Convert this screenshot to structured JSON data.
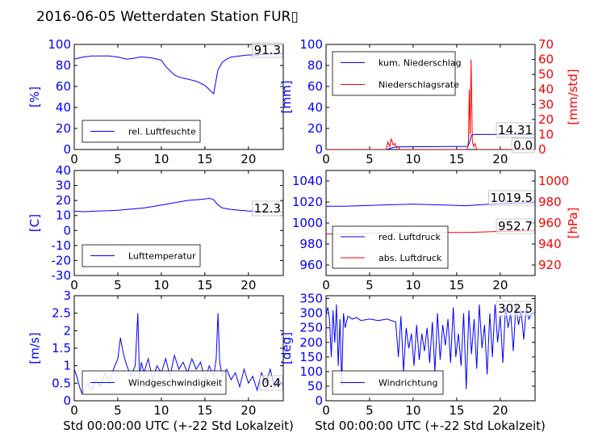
{
  "figure_title": "2016-06-05 Wetterdaten Station FUR▯",
  "xlabel": "Std 00:00:00 UTC (+-22 Std Lokalzeit)",
  "colors": {
    "blue": "#0000ff",
    "red": "#ff0000",
    "lightblue": "#8080ff",
    "black": "#000000"
  },
  "chart_data": [
    {
      "id": "humidity",
      "type": "line",
      "xlim": [
        0,
        24
      ],
      "ylim": [
        0,
        100
      ],
      "xticks": [
        0,
        5,
        10,
        15,
        20
      ],
      "yticks": [
        0,
        20,
        40,
        60,
        80,
        100
      ],
      "ylabel": "[%]",
      "value_label": "91.3",
      "legend": {
        "placement": "lower-left",
        "entries": [
          {
            "name": "rel. Luftfeuchte",
            "color": "#0000ff"
          }
        ]
      },
      "series": [
        {
          "name": "rel. Luftfeuchte",
          "color": "#0000ff",
          "x": [
            0,
            0.5,
            1,
            2,
            3,
            4,
            5,
            6,
            7,
            7.5,
            8,
            9,
            10,
            10.5,
            11,
            11.5,
            12,
            12.5,
            13,
            13.5,
            14,
            14.5,
            15,
            15.5,
            16,
            16.2,
            16.5,
            17,
            17.5,
            18,
            19,
            20,
            21,
            22,
            23,
            24
          ],
          "y": [
            86,
            87,
            88,
            89,
            89,
            89,
            88,
            86,
            87,
            88,
            88,
            87,
            85,
            79,
            75,
            71,
            69,
            68,
            67,
            66,
            65,
            63,
            61,
            57,
            53,
            62,
            76,
            83,
            86,
            88,
            89,
            90,
            90,
            91,
            91,
            91.3
          ]
        }
      ]
    },
    {
      "id": "precipitation",
      "type": "line",
      "xlim": [
        0,
        24
      ],
      "ylim": [
        0,
        100
      ],
      "y2lim": [
        0,
        70
      ],
      "xticks": [
        0,
        5,
        10,
        15,
        20
      ],
      "yticks": [
        0,
        20,
        40,
        60,
        80,
        100
      ],
      "y2ticks": [
        0,
        10,
        20,
        30,
        40,
        50,
        60,
        70
      ],
      "ylabel": "[mm]",
      "y2label": "[mm/std]",
      "value_labels": [
        "14.31",
        "0.0"
      ],
      "legend": {
        "placement": "upper-left",
        "entries": [
          {
            "name": "kum. Niederschlag",
            "color": "#0000ff"
          },
          {
            "name": "Niederschlagsrate",
            "color": "#ff0000"
          }
        ]
      },
      "series": [
        {
          "name": "kum. Niederschlag",
          "color": "#0000ff",
          "axis": "left",
          "x": [
            0,
            7,
            7.5,
            8,
            16.3,
            16.5,
            16.7,
            17,
            24
          ],
          "y": [
            0,
            0,
            1.5,
            2.5,
            3,
            8,
            13.5,
            14.31,
            14.31
          ]
        },
        {
          "name": "Niederschlagsrate",
          "color": "#ff0000",
          "axis": "right",
          "x": [
            0,
            6.9,
            7.1,
            7.3,
            7.5,
            7.7,
            7.9,
            8.1,
            8.3,
            8.5,
            16.2,
            16.35,
            16.45,
            16.55,
            16.65,
            16.8,
            16.95,
            17.1,
            17.3,
            24
          ],
          "y": [
            0,
            0,
            5,
            2,
            7,
            3,
            4,
            1,
            2,
            0,
            0,
            5,
            40,
            10,
            60,
            5,
            2,
            4,
            0,
            0
          ]
        }
      ]
    },
    {
      "id": "temperature",
      "type": "line",
      "xlim": [
        0,
        24
      ],
      "ylim": [
        -30,
        40
      ],
      "xticks": [
        0,
        5,
        10,
        15,
        20
      ],
      "yticks": [
        -30,
        -20,
        -10,
        0,
        10,
        20,
        30,
        40
      ],
      "ylabel": "[C]",
      "value_label": "12.3",
      "legend": {
        "placement": "lower-left",
        "entries": [
          {
            "name": "Lufttemperatur",
            "color": "#0000ff"
          }
        ]
      },
      "series": [
        {
          "name": "Lufttemperatur",
          "color": "#0000ff",
          "x": [
            0,
            1,
            2,
            3,
            4,
            5,
            6,
            7,
            8,
            9,
            10,
            11,
            12,
            13,
            14,
            15,
            15.5,
            16,
            16.5,
            17,
            18,
            19,
            20,
            21,
            22,
            23,
            24
          ],
          "y": [
            13,
            12.5,
            12.8,
            13,
            13.2,
            13.5,
            14,
            14.5,
            15,
            16,
            17,
            18,
            19,
            20,
            20.5,
            21,
            21.5,
            20.5,
            17,
            15,
            14,
            13.5,
            13,
            12.8,
            12.5,
            12.4,
            12.3
          ]
        }
      ]
    },
    {
      "id": "pressure",
      "type": "line",
      "xlim": [
        0,
        24
      ],
      "ylim": [
        950,
        1050
      ],
      "y2lim": [
        910,
        1010
      ],
      "xticks": [
        0,
        5,
        10,
        15,
        20
      ],
      "yticks": [
        960,
        980,
        1000,
        1020,
        1040
      ],
      "y2ticks": [
        920,
        940,
        960,
        980,
        1000
      ],
      "ylabel": "",
      "y2label": "[hPa]",
      "value_labels": [
        "1019.5",
        "952.7"
      ],
      "legend": {
        "placement": "lower-left",
        "entries": [
          {
            "name": "red. Luftdruck",
            "color": "#0000ff"
          },
          {
            "name": "abs. Luftdruck",
            "color": "#ff0000"
          }
        ]
      },
      "series": [
        {
          "name": "red. Luftdruck",
          "color": "#0000ff",
          "axis": "left",
          "x": [
            0,
            2,
            4,
            6,
            8,
            10,
            12,
            14,
            16,
            18,
            20,
            22,
            24
          ],
          "y": [
            1016,
            1016,
            1016.5,
            1017,
            1017.5,
            1018,
            1017.5,
            1017,
            1016.5,
            1017.5,
            1018.5,
            1019,
            1019.5
          ]
        },
        {
          "name": "abs. Luftdruck",
          "color": "#ff0000",
          "axis": "right",
          "x": [
            0,
            2,
            4,
            6,
            8,
            10,
            12,
            14,
            16,
            18,
            20,
            22,
            24
          ],
          "y": [
            949.5,
            949.5,
            950,
            950.5,
            951,
            951.5,
            951,
            951,
            951,
            951.5,
            952,
            952.3,
            952.7
          ]
        }
      ]
    },
    {
      "id": "windspeed",
      "type": "line",
      "xlim": [
        0,
        24
      ],
      "ylim": [
        0,
        3
      ],
      "xticks": [
        0,
        5,
        10,
        15,
        20
      ],
      "yticks": [
        0,
        0.5,
        1.0,
        1.5,
        2.0,
        2.5,
        3.0
      ],
      "ylabel": "[m/s]",
      "value_label": "0.4",
      "legend": {
        "placement": "lower-center",
        "entries": [
          {
            "name": "Windgeschwindigkeit",
            "color": "#0000ff"
          }
        ]
      },
      "series": [
        {
          "name": "Windgeschwindigkeit",
          "color": "#0000ff",
          "x": [
            0,
            0.3,
            0.6,
            0.9,
            1.2,
            1.5,
            2,
            2.5,
            3,
            3.5,
            4,
            4.5,
            5,
            5.3,
            5.6,
            5.9,
            6.2,
            6.5,
            7,
            7.3,
            7.5,
            7.7,
            8,
            8.5,
            9,
            9.5,
            10,
            10.5,
            11,
            11.5,
            12,
            12.5,
            13,
            13.5,
            14,
            14.5,
            15,
            15.5,
            16,
            16.3,
            16.5,
            16.7,
            17,
            17.5,
            18,
            18.5,
            19,
            19.5,
            20,
            20.5,
            21,
            21.5,
            22,
            22.5,
            23,
            23.5,
            24
          ],
          "y": [
            0.9,
            0.7,
            0.4,
            0.2,
            0.3,
            0.5,
            0.3,
            0.6,
            0.4,
            0.8,
            0.5,
            0.9,
            1.2,
            1.8,
            1.4,
            1.1,
            0.9,
            0.7,
            1.0,
            2.5,
            0.6,
            1.1,
            0.8,
            1.2,
            0.6,
            1.0,
            0.8,
            1.2,
            0.7,
            1.3,
            0.9,
            1.1,
            0.8,
            1.2,
            0.9,
            1.1,
            0.6,
            1.0,
            0.7,
            1.2,
            2.5,
            1.1,
            0.7,
            0.9,
            0.6,
            0.8,
            0.4,
            0.9,
            0.5,
            0.7,
            0.3,
            0.8,
            0.5,
            0.9,
            0.4,
            0.6,
            0.4
          ]
        }
      ]
    },
    {
      "id": "winddirection",
      "type": "line",
      "xlim": [
        0,
        24
      ],
      "ylim": [
        0,
        360
      ],
      "xticks": [
        0,
        5,
        10,
        15,
        20
      ],
      "yticks": [
        0,
        50,
        100,
        150,
        200,
        250,
        300,
        350
      ],
      "ylabel": "[deg]",
      "value_label": "302.5",
      "legend": {
        "placement": "lower-left",
        "entries": [
          {
            "name": "Windrichtung",
            "color": "#0000ff"
          }
        ]
      },
      "series": [
        {
          "name": "Windrichtung",
          "color": "#0000ff",
          "x": [
            0,
            0.2,
            0.4,
            0.6,
            0.8,
            1.0,
            1.2,
            1.4,
            1.6,
            1.8,
            2.0,
            2.2,
            2.5,
            3,
            3.5,
            4,
            5,
            6,
            7,
            8,
            8.3,
            8.6,
            8.9,
            9.2,
            9.5,
            9.8,
            10.1,
            10.4,
            10.7,
            11,
            11.3,
            11.6,
            11.9,
            12.2,
            12.5,
            12.8,
            13.1,
            13.4,
            13.7,
            14,
            14.3,
            14.6,
            14.9,
            15.2,
            15.5,
            15.8,
            16.1,
            16.4,
            16.7,
            17,
            17.3,
            17.6,
            17.9,
            18.2,
            18.5,
            18.8,
            19.1,
            19.4,
            19.7,
            20,
            20.3,
            20.6,
            20.9,
            21.2,
            21.5,
            21.8,
            22.1,
            22.4,
            22.7,
            23,
            23.3,
            23.6,
            24
          ],
          "y": [
            300,
            320,
            280,
            150,
            310,
            200,
            330,
            120,
            280,
            50,
            300,
            250,
            290,
            280,
            285,
            275,
            280,
            275,
            280,
            270,
            150,
            290,
            100,
            250,
            180,
            230,
            120,
            260,
            140,
            230,
            170,
            250,
            130,
            270,
            100,
            300,
            140,
            260,
            190,
            280,
            130,
            320,
            150,
            230,
            120,
            300,
            40,
            310,
            160,
            280,
            110,
            330,
            180,
            260,
            90,
            300,
            150,
            330,
            200,
            290,
            130,
            320,
            250,
            300,
            170,
            330,
            260,
            310,
            210,
            320,
            280,
            300,
            302.5
          ]
        }
      ]
    }
  ]
}
